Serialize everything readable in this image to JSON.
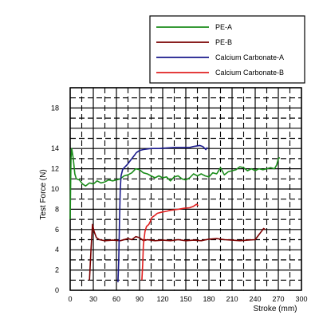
{
  "chart_data": {
    "type": "line",
    "title": "",
    "xlabel": "Stroke (mm)",
    "ylabel": "Test Force (N)",
    "xlim": [
      0,
      300
    ],
    "ylim": [
      0,
      20
    ],
    "xticks": [
      0,
      30,
      60,
      90,
      120,
      150,
      180,
      210,
      240,
      270,
      300
    ],
    "yticks": [
      0,
      2,
      4,
      6,
      8,
      10,
      12,
      14,
      18
    ],
    "grid": true,
    "legend_position": "top-right",
    "series": [
      {
        "name": "PE-A",
        "color": "#1a8c1a",
        "points": [
          [
            0,
            7
          ],
          [
            1,
            13
          ],
          [
            2,
            14
          ],
          [
            4,
            13
          ],
          [
            6,
            11.5
          ],
          [
            8,
            11
          ],
          [
            12,
            10.9
          ],
          [
            16,
            10.5
          ],
          [
            20,
            10.3
          ],
          [
            25,
            10.6
          ],
          [
            30,
            10.5
          ],
          [
            35,
            10.8
          ],
          [
            40,
            10.6
          ],
          [
            45,
            10.7
          ],
          [
            50,
            10.9
          ],
          [
            55,
            10.8
          ],
          [
            60,
            10.9
          ],
          [
            65,
            11
          ],
          [
            70,
            11.3
          ],
          [
            75,
            11.4
          ],
          [
            80,
            11.6
          ],
          [
            85,
            12
          ],
          [
            90,
            11.9
          ],
          [
            95,
            11.6
          ],
          [
            100,
            11.5
          ],
          [
            105,
            11.3
          ],
          [
            110,
            11.1
          ],
          [
            115,
            11.3
          ],
          [
            120,
            11.1
          ],
          [
            125,
            11.2
          ],
          [
            130,
            10.8
          ],
          [
            135,
            11.2
          ],
          [
            140,
            11.3
          ],
          [
            145,
            11
          ],
          [
            150,
            10.9
          ],
          [
            155,
            11.1
          ],
          [
            160,
            11.5
          ],
          [
            165,
            11.3
          ],
          [
            170,
            11.5
          ],
          [
            175,
            11.3
          ],
          [
            180,
            11.2
          ],
          [
            185,
            11.6
          ],
          [
            190,
            11.5
          ],
          [
            195,
            12.1
          ],
          [
            200,
            11.4
          ],
          [
            205,
            11.7
          ],
          [
            210,
            11.8
          ],
          [
            215,
            11.9
          ],
          [
            220,
            12.2
          ],
          [
            225,
            12.1
          ],
          [
            230,
            11.8
          ],
          [
            235,
            12
          ],
          [
            240,
            11.8
          ],
          [
            245,
            12
          ],
          [
            250,
            11.9
          ],
          [
            255,
            12
          ],
          [
            260,
            12.1
          ],
          [
            265,
            12
          ],
          [
            268,
            12.4
          ],
          [
            270,
            13
          ],
          [
            272,
            13.1
          ]
        ]
      },
      {
        "name": "PE-B",
        "color": "#7a0000",
        "points": [
          [
            25,
            1
          ],
          [
            27,
            4
          ],
          [
            29,
            6.5
          ],
          [
            31,
            5.8
          ],
          [
            34,
            5.2
          ],
          [
            38,
            5
          ],
          [
            45,
            4.9
          ],
          [
            55,
            4.95
          ],
          [
            65,
            4.9
          ],
          [
            75,
            5.1
          ],
          [
            80,
            5
          ],
          [
            85,
            5.3
          ],
          [
            90,
            5.2
          ],
          [
            95,
            4.9
          ],
          [
            100,
            5
          ],
          [
            110,
            4.9
          ],
          [
            120,
            4.95
          ],
          [
            130,
            4.9
          ],
          [
            140,
            5
          ],
          [
            150,
            4.9
          ],
          [
            160,
            4.95
          ],
          [
            170,
            4.9
          ],
          [
            180,
            5.05
          ],
          [
            190,
            5.1
          ],
          [
            200,
            5
          ],
          [
            210,
            4.95
          ],
          [
            220,
            4.9
          ],
          [
            230,
            4.95
          ],
          [
            240,
            5
          ],
          [
            245,
            5.5
          ],
          [
            248,
            5.8
          ],
          [
            251,
            6.1
          ],
          [
            253,
            6.0
          ]
        ]
      },
      {
        "name": "Calcium Carbonate-A",
        "color": "#1a1a8c",
        "points": [
          [
            62,
            0.8
          ],
          [
            63,
            3
          ],
          [
            64,
            7
          ],
          [
            65,
            10
          ],
          [
            66,
            11.3
          ],
          [
            68,
            11.9
          ],
          [
            70,
            12.1
          ],
          [
            74,
            12.4
          ],
          [
            78,
            12.8
          ],
          [
            82,
            13.2
          ],
          [
            86,
            13.6
          ],
          [
            90,
            13.8
          ],
          [
            95,
            13.9
          ],
          [
            105,
            14
          ],
          [
            115,
            14
          ],
          [
            125,
            14.05
          ],
          [
            135,
            14.1
          ],
          [
            145,
            14.1
          ],
          [
            155,
            14.1
          ],
          [
            160,
            14.2
          ],
          [
            168,
            14.3
          ],
          [
            172,
            14.2
          ],
          [
            176,
            13.9
          ],
          [
            178,
            14.1
          ]
        ]
      },
      {
        "name": "Calcium Carbonate-B",
        "color": "#e02020",
        "points": [
          [
            93,
            1
          ],
          [
            94,
            2.5
          ],
          [
            95,
            4.5
          ],
          [
            97,
            5.8
          ],
          [
            99,
            6.3
          ],
          [
            102,
            6.5
          ],
          [
            104,
            6.8
          ],
          [
            106,
            7.2
          ],
          [
            108,
            7.3
          ],
          [
            110,
            7.4
          ],
          [
            113,
            7.6
          ],
          [
            118,
            7.7
          ],
          [
            125,
            7.8
          ],
          [
            130,
            7.9
          ],
          [
            140,
            8.0
          ],
          [
            148,
            8.1
          ],
          [
            155,
            8.15
          ],
          [
            160,
            8.3
          ],
          [
            164,
            8.5
          ],
          [
            166,
            8.35
          ]
        ]
      }
    ]
  }
}
